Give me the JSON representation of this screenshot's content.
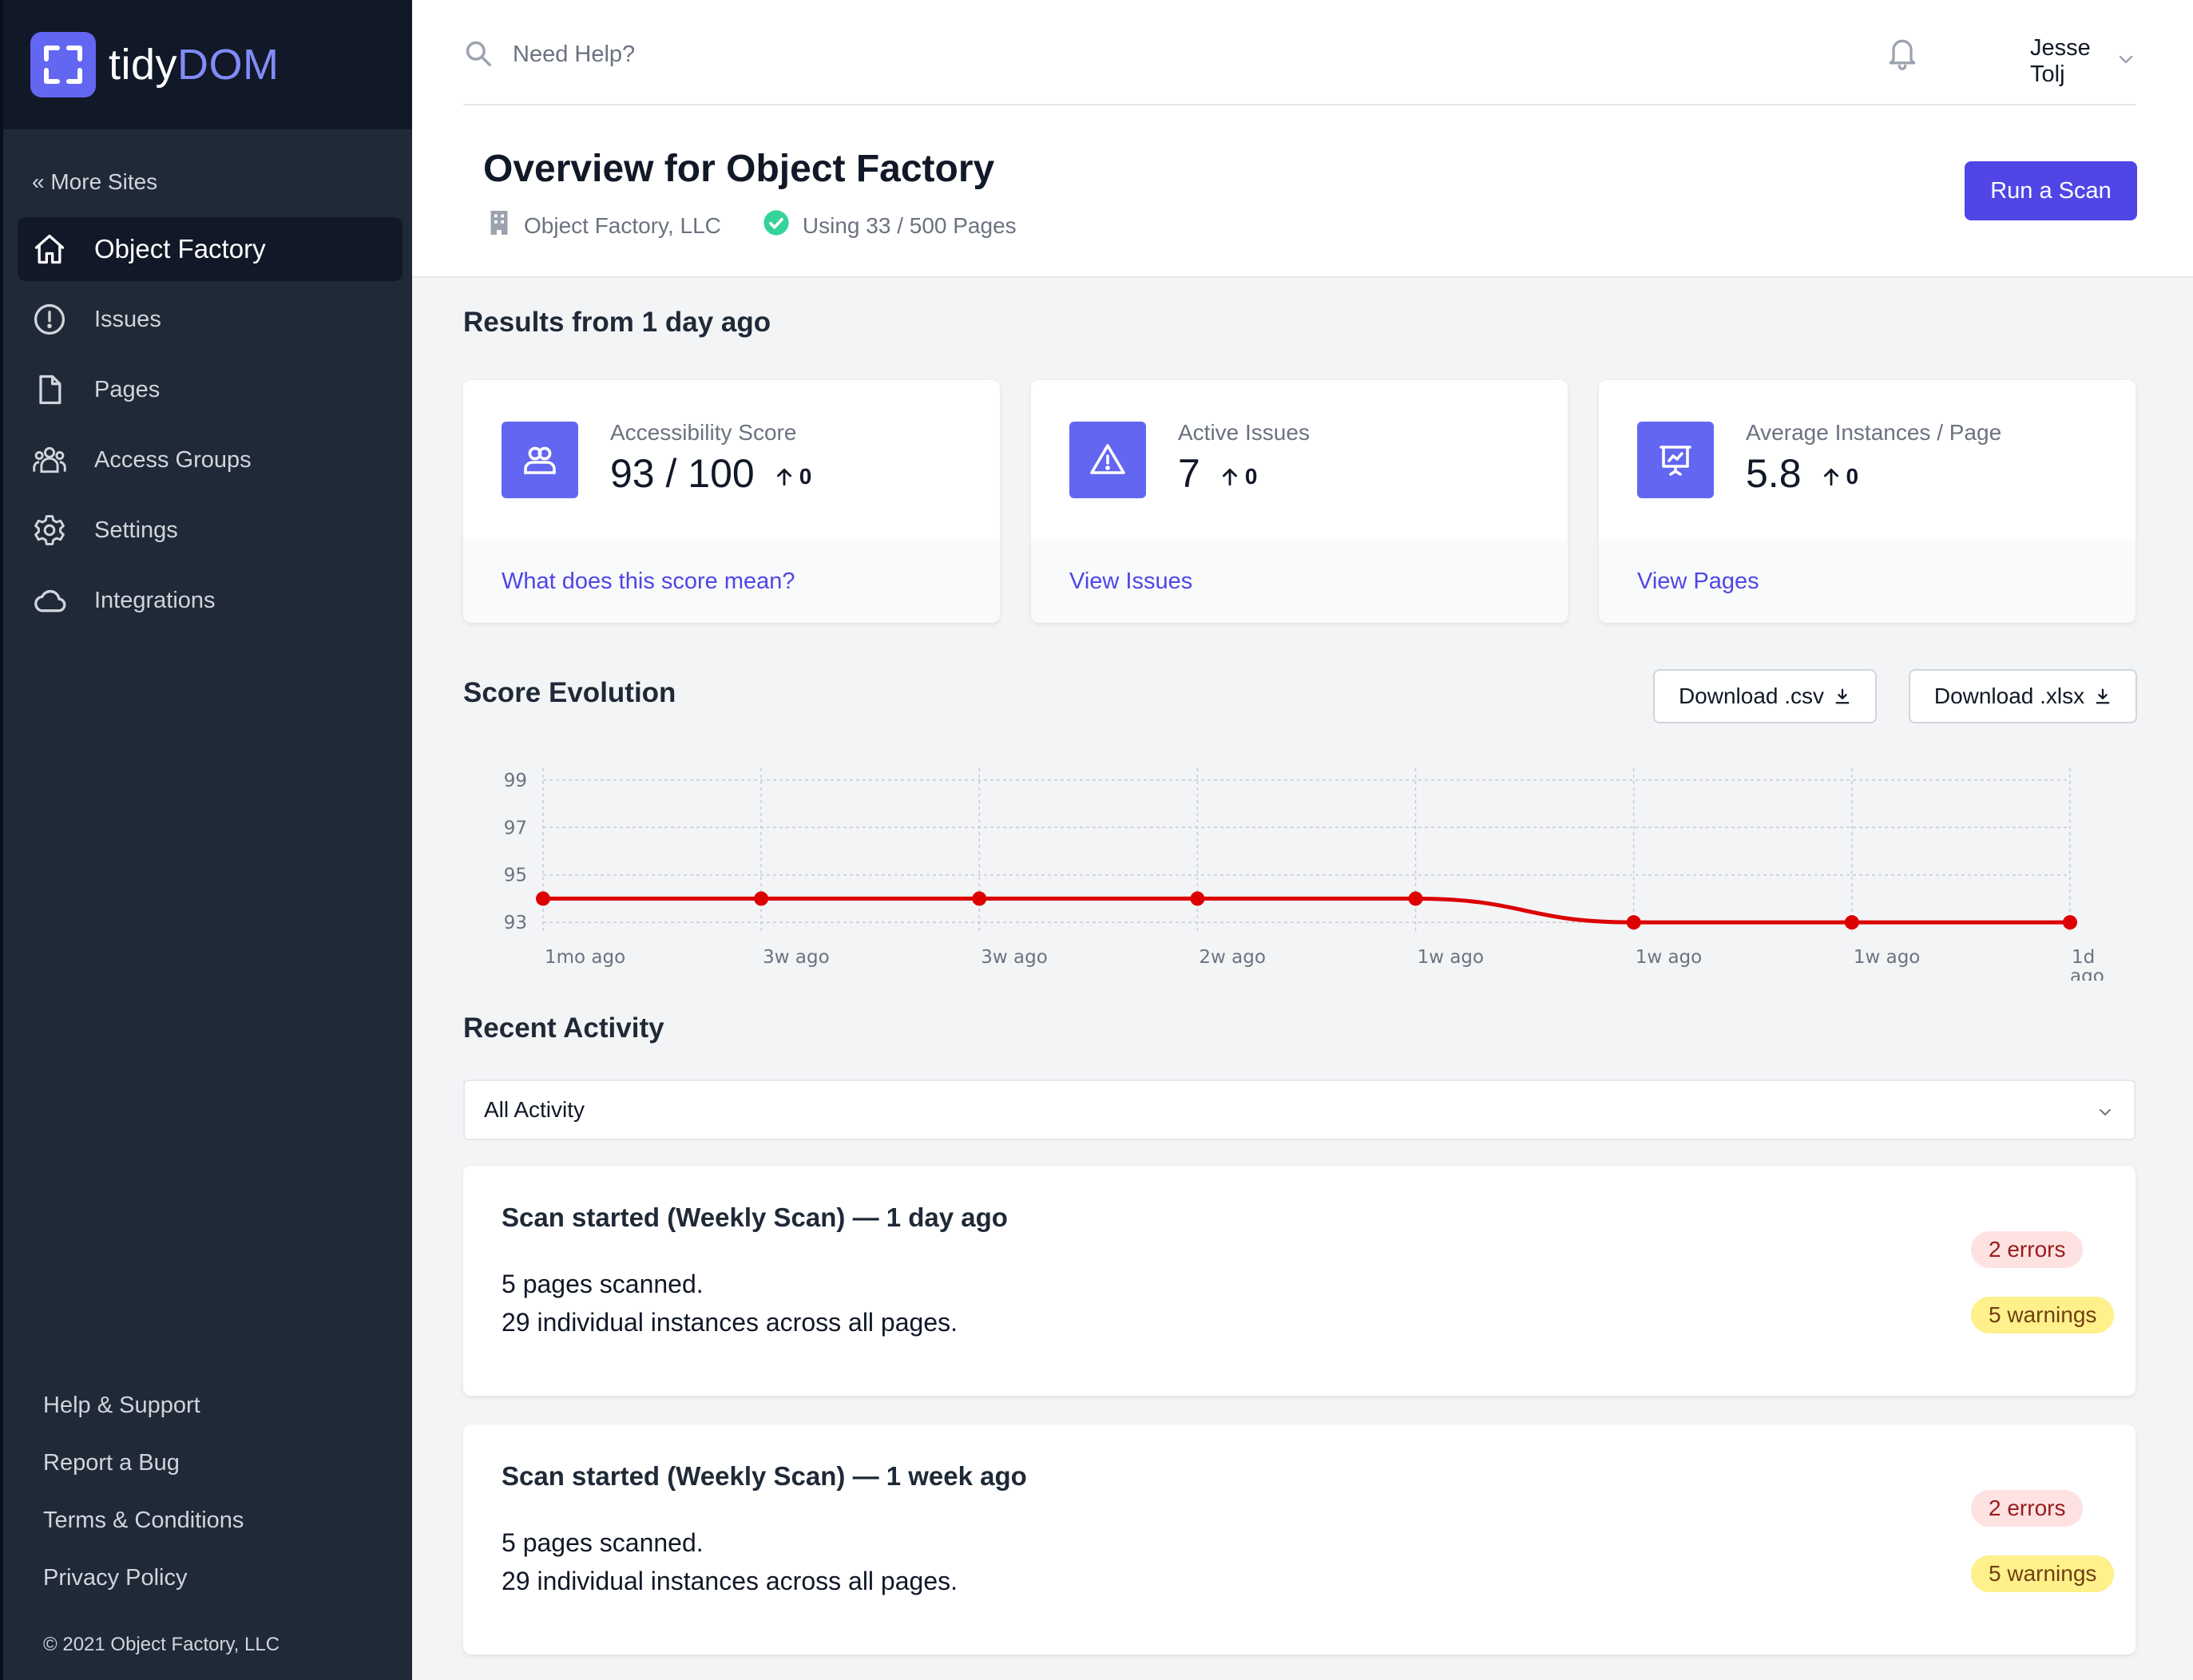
{
  "app": {
    "logo_main": "tidy",
    "logo_accent": "DOM"
  },
  "sidebar": {
    "back_label": "« More Sites",
    "items": [
      {
        "label": "Object Factory",
        "icon": "home-icon"
      },
      {
        "label": "Issues",
        "icon": "alert-circle-icon"
      },
      {
        "label": "Pages",
        "icon": "document-icon"
      },
      {
        "label": "Access Groups",
        "icon": "users-icon"
      },
      {
        "label": "Settings",
        "icon": "gear-icon"
      },
      {
        "label": "Integrations",
        "icon": "cloud-icon"
      }
    ],
    "footer_links": [
      "Help & Support",
      "Report a Bug",
      "Terms & Conditions",
      "Privacy Policy"
    ],
    "copyright": "© 2021 Object Factory, LLC"
  },
  "topbar": {
    "search_placeholder": "Need Help?",
    "user_name": "Jesse Tolj"
  },
  "header": {
    "title": "Overview for Object Factory",
    "org": "Object Factory, LLC",
    "usage": "Using 33 / 500 Pages",
    "run_button": "Run a Scan"
  },
  "results": {
    "title": "Results from 1 day ago",
    "cards": [
      {
        "label": "Accessibility Score",
        "value": "93 / 100",
        "delta": "0",
        "link": "What does this score mean?",
        "icon": "users-icon"
      },
      {
        "label": "Active Issues",
        "value": "7",
        "delta": "0",
        "link": "View Issues",
        "icon": "warning-icon"
      },
      {
        "label": "Average Instances / Page",
        "value": "5.8",
        "delta": "0",
        "link": "View Pages",
        "icon": "presentation-chart-icon"
      }
    ]
  },
  "score_evolution": {
    "title": "Score Evolution",
    "download_csv": "Download .csv",
    "download_xlsx": "Download .xlsx"
  },
  "chart_data": {
    "type": "line",
    "title": "Score Evolution",
    "x": [
      "1mo ago",
      "3w ago",
      "3w ago",
      "2w ago",
      "1w ago",
      "1w ago",
      "1w ago",
      "1d ago"
    ],
    "series": [
      {
        "values": [
          94,
          94,
          94,
          94,
          94,
          93,
          93,
          93
        ]
      }
    ],
    "y_ticks": [
      93,
      95,
      97,
      99
    ],
    "ylim": [
      92.5,
      99.5
    ],
    "grid": true,
    "color": "#dc0000"
  },
  "activity": {
    "title": "Recent Activity",
    "filter_value": "All Activity",
    "items": [
      {
        "title": "Scan started (Weekly Scan) — 1 day ago",
        "line1": "5 pages scanned.",
        "line2": "29 individual instances across all pages.",
        "errors": "2 errors",
        "warnings": "5 warnings"
      },
      {
        "title": "Scan started (Weekly Scan) — 1 week ago",
        "line1": "5 pages scanned.",
        "line2": "29 individual instances across all pages.",
        "errors": "2 errors",
        "warnings": "5 warnings"
      }
    ]
  },
  "colors": {
    "accent": "#4f46e5",
    "sidebar": "#1f2937",
    "line": "#dc0000"
  }
}
